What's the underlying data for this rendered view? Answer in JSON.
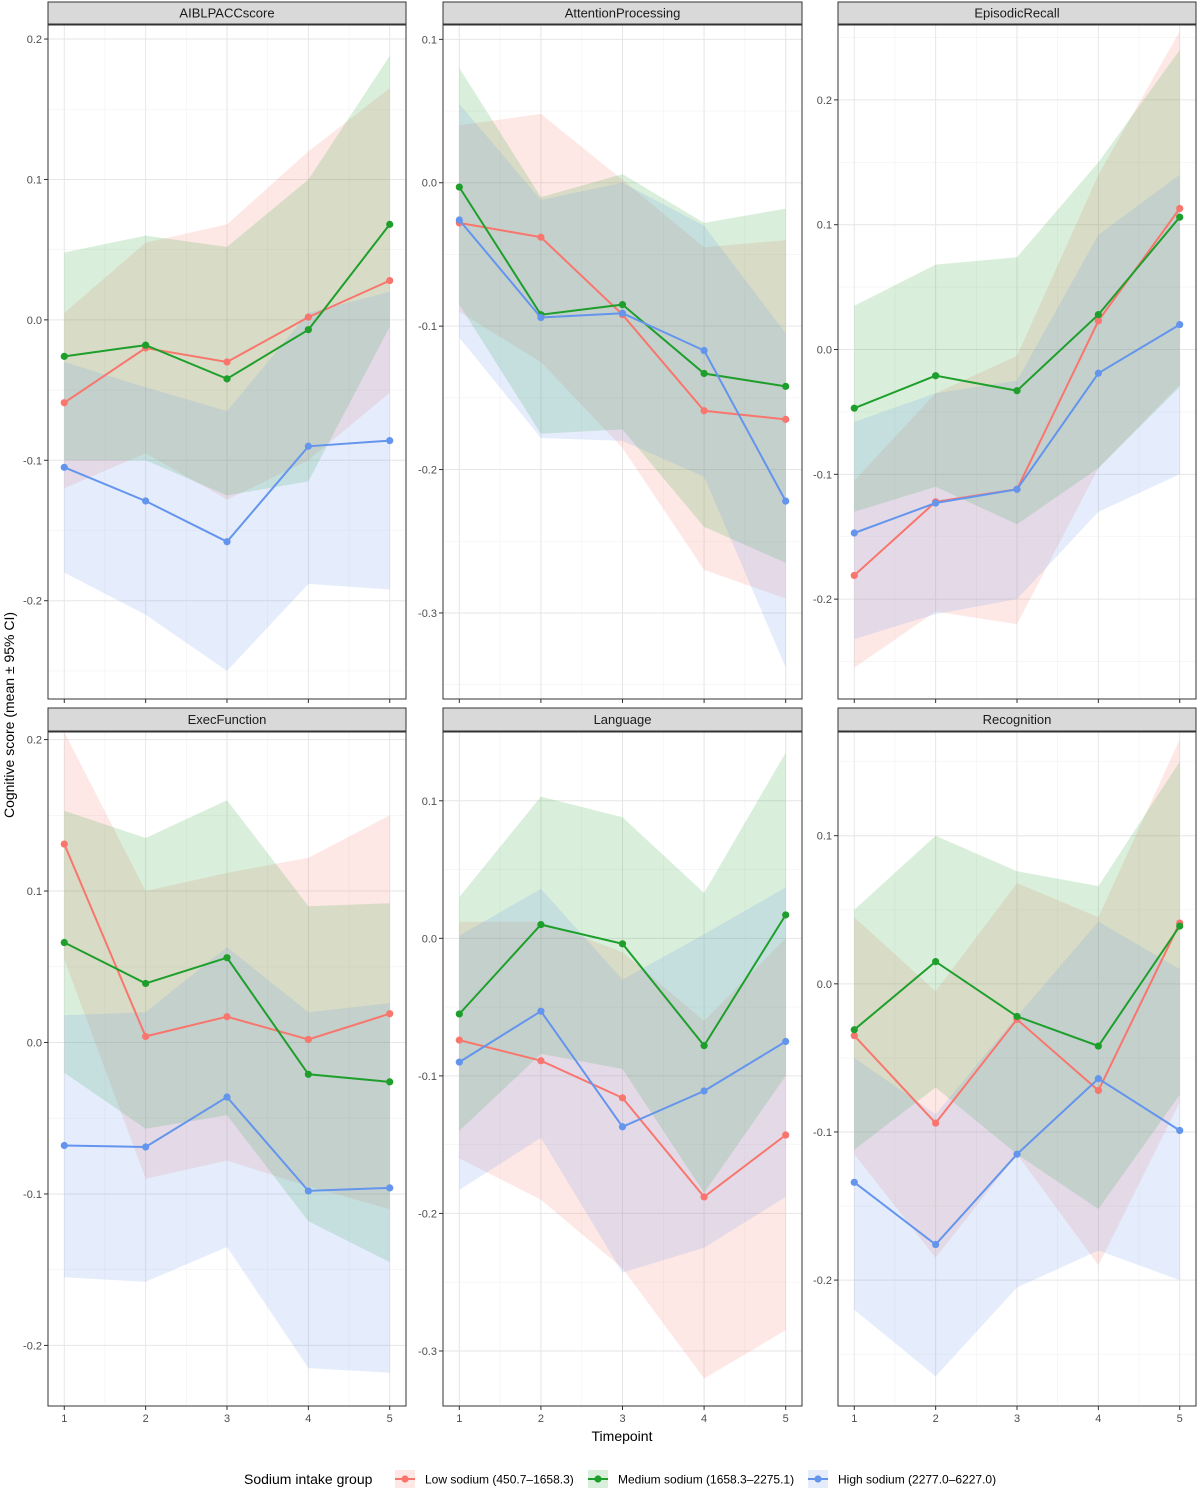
{
  "figure": {
    "ylabel": "Cognitive score (mean ± 95% CI)",
    "xlabel": "Timepoint"
  },
  "legend": {
    "title": "Sodium intake group",
    "entries": [
      {
        "name": "Low sodium (450.7–1658.3)",
        "color": "#F8766D"
      },
      {
        "name": "Medium sodium (1658.3–2275.1)",
        "color": "#1E9F2C"
      },
      {
        "name": "High sodium (2277.0–6227.0)",
        "color": "#6495ED"
      }
    ]
  },
  "chart_data": [
    {
      "type": "line",
      "title": "AIBLPACCscore",
      "x": [
        1,
        2,
        3,
        4,
        5
      ],
      "ylim": [
        -0.27,
        0.21
      ],
      "yticks": [
        -0.2,
        -0.1,
        0.0,
        0.1,
        0.2
      ],
      "series": [
        {
          "name": "Low sodium (450.7–1658.3)",
          "values": [
            -0.059,
            -0.02,
            -0.03,
            0.002,
            0.028
          ],
          "lower": [
            -0.12,
            -0.095,
            -0.128,
            -0.1,
            -0.052
          ],
          "upper": [
            0.005,
            0.055,
            0.068,
            0.12,
            0.165
          ]
        },
        {
          "name": "Medium sodium (1658.3–2275.1)",
          "values": [
            -0.026,
            -0.018,
            -0.042,
            -0.007,
            0.068
          ],
          "lower": [
            -0.1,
            -0.1,
            -0.125,
            -0.115,
            -0.005
          ],
          "upper": [
            0.048,
            0.06,
            0.052,
            0.1,
            0.188
          ]
        },
        {
          "name": "High sodium (2277.0–6227.0)",
          "values": [
            -0.105,
            -0.129,
            -0.158,
            -0.09,
            -0.086
          ],
          "lower": [
            -0.18,
            -0.21,
            -0.25,
            -0.188,
            -0.192
          ],
          "upper": [
            -0.03,
            -0.048,
            -0.065,
            0.005,
            0.02
          ]
        }
      ]
    },
    {
      "type": "line",
      "title": "AttentionProcessing",
      "x": [
        1,
        2,
        3,
        4,
        5
      ],
      "ylim": [
        -0.36,
        0.11
      ],
      "yticks": [
        -0.3,
        -0.2,
        -0.1,
        0.0,
        0.1
      ],
      "series": [
        {
          "name": "Low sodium (450.7–1658.3)",
          "values": [
            -0.028,
            -0.038,
            -0.092,
            -0.159,
            -0.165
          ],
          "lower": [
            -0.09,
            -0.125,
            -0.185,
            -0.27,
            -0.29
          ],
          "upper": [
            0.04,
            0.048,
            0.002,
            -0.045,
            -0.04
          ]
        },
        {
          "name": "Medium sodium (1658.3–2275.1)",
          "values": [
            -0.003,
            -0.092,
            -0.085,
            -0.133,
            -0.142
          ],
          "lower": [
            -0.085,
            -0.175,
            -0.172,
            -0.24,
            -0.265
          ],
          "upper": [
            0.08,
            -0.01,
            0.006,
            -0.028,
            -0.018
          ]
        },
        {
          "name": "High sodium (2277.0–6227.0)",
          "values": [
            -0.026,
            -0.094,
            -0.091,
            -0.117,
            -0.222
          ],
          "lower": [
            -0.108,
            -0.178,
            -0.18,
            -0.205,
            -0.338
          ],
          "upper": [
            0.055,
            -0.012,
            0.0,
            -0.03,
            -0.105
          ]
        }
      ]
    },
    {
      "type": "line",
      "title": "EpisodicRecall",
      "x": [
        1,
        2,
        3,
        4,
        5
      ],
      "ylim": [
        -0.28,
        0.26
      ],
      "yticks": [
        -0.2,
        -0.1,
        0.0,
        0.1,
        0.2
      ],
      "series": [
        {
          "name": "Low sodium (450.7–1658.3)",
          "values": [
            -0.181,
            -0.122,
            -0.112,
            0.023,
            0.113
          ],
          "lower": [
            -0.255,
            -0.21,
            -0.22,
            -0.095,
            -0.028
          ],
          "upper": [
            -0.105,
            -0.035,
            -0.005,
            0.14,
            0.255
          ]
        },
        {
          "name": "Medium sodium (1658.3–2275.1)",
          "values": [
            -0.047,
            -0.021,
            -0.033,
            0.028,
            0.106
          ],
          "lower": [
            -0.13,
            -0.11,
            -0.14,
            -0.095,
            -0.03
          ],
          "upper": [
            0.035,
            0.068,
            0.074,
            0.15,
            0.24
          ]
        },
        {
          "name": "High sodium (2277.0–6227.0)",
          "values": [
            -0.147,
            -0.123,
            -0.112,
            -0.019,
            0.02
          ],
          "lower": [
            -0.232,
            -0.212,
            -0.2,
            -0.13,
            -0.1
          ],
          "upper": [
            -0.058,
            -0.035,
            -0.025,
            0.092,
            0.14
          ]
        }
      ]
    },
    {
      "type": "line",
      "title": "ExecFunction",
      "x": [
        1,
        2,
        3,
        4,
        5
      ],
      "ylim": [
        -0.24,
        0.205
      ],
      "yticks": [
        -0.2,
        -0.1,
        0.0,
        0.1,
        0.2
      ],
      "series": [
        {
          "name": "Low sodium (450.7–1658.3)",
          "values": [
            0.131,
            0.004,
            0.017,
            0.002,
            0.019
          ],
          "lower": [
            0.055,
            -0.09,
            -0.078,
            -0.095,
            -0.11
          ],
          "upper": [
            0.205,
            0.1,
            0.112,
            0.122,
            0.15
          ]
        },
        {
          "name": "Medium sodium (1658.3–2275.1)",
          "values": [
            0.066,
            0.039,
            0.056,
            -0.021,
            -0.026
          ],
          "lower": [
            -0.02,
            -0.057,
            -0.048,
            -0.118,
            -0.145
          ],
          "upper": [
            0.153,
            0.135,
            0.16,
            0.09,
            0.092
          ]
        },
        {
          "name": "High sodium (2277.0–6227.0)",
          "values": [
            -0.068,
            -0.069,
            -0.036,
            -0.098,
            -0.096
          ],
          "lower": [
            -0.155,
            -0.158,
            -0.135,
            -0.215,
            -0.218
          ],
          "upper": [
            0.018,
            0.02,
            0.063,
            0.02,
            0.026
          ]
        }
      ]
    },
    {
      "type": "line",
      "title": "Language",
      "x": [
        1,
        2,
        3,
        4,
        5
      ],
      "ylim": [
        -0.34,
        0.15
      ],
      "yticks": [
        -0.3,
        -0.2,
        -0.1,
        0.0,
        0.1
      ],
      "series": [
        {
          "name": "Low sodium (450.7–1658.3)",
          "values": [
            -0.074,
            -0.089,
            -0.116,
            -0.188,
            -0.143
          ],
          "lower": [
            -0.16,
            -0.19,
            -0.24,
            -0.32,
            -0.285
          ],
          "upper": [
            0.012,
            0.012,
            -0.01,
            -0.06,
            0.0
          ]
        },
        {
          "name": "Medium sodium (1658.3–2275.1)",
          "values": [
            -0.055,
            0.01,
            -0.004,
            -0.078,
            0.017
          ],
          "lower": [
            -0.14,
            -0.084,
            -0.095,
            -0.185,
            -0.1
          ],
          "upper": [
            0.03,
            0.103,
            0.088,
            0.033,
            0.135
          ]
        },
        {
          "name": "High sodium (2277.0–6227.0)",
          "values": [
            -0.09,
            -0.053,
            -0.137,
            -0.111,
            -0.075
          ],
          "lower": [
            -0.183,
            -0.145,
            -0.243,
            -0.225,
            -0.188
          ],
          "upper": [
            0.002,
            0.036,
            -0.03,
            0.003,
            0.037
          ]
        }
      ]
    },
    {
      "type": "line",
      "title": "Recognition",
      "x": [
        1,
        2,
        3,
        4,
        5
      ],
      "ylim": [
        -0.285,
        0.17
      ],
      "yticks": [
        -0.2,
        -0.1,
        0.0,
        0.1
      ],
      "series": [
        {
          "name": "Low sodium (450.7–1658.3)",
          "values": [
            -0.035,
            -0.094,
            -0.024,
            -0.072,
            0.041
          ],
          "lower": [
            -0.115,
            -0.185,
            -0.115,
            -0.19,
            -0.08
          ],
          "upper": [
            0.045,
            -0.005,
            0.068,
            0.045,
            0.165
          ]
        },
        {
          "name": "Medium sodium (1658.3–2275.1)",
          "values": [
            -0.031,
            0.015,
            -0.022,
            -0.042,
            0.039
          ],
          "lower": [
            -0.112,
            -0.07,
            -0.115,
            -0.152,
            -0.075
          ],
          "upper": [
            0.05,
            0.1,
            0.076,
            0.066,
            0.15
          ]
        },
        {
          "name": "High sodium (2277.0–6227.0)",
          "values": [
            -0.134,
            -0.176,
            -0.115,
            -0.064,
            -0.099
          ],
          "lower": [
            -0.22,
            -0.265,
            -0.205,
            -0.18,
            -0.2
          ],
          "upper": [
            -0.05,
            -0.088,
            -0.022,
            0.042,
            0.01
          ]
        }
      ]
    }
  ]
}
